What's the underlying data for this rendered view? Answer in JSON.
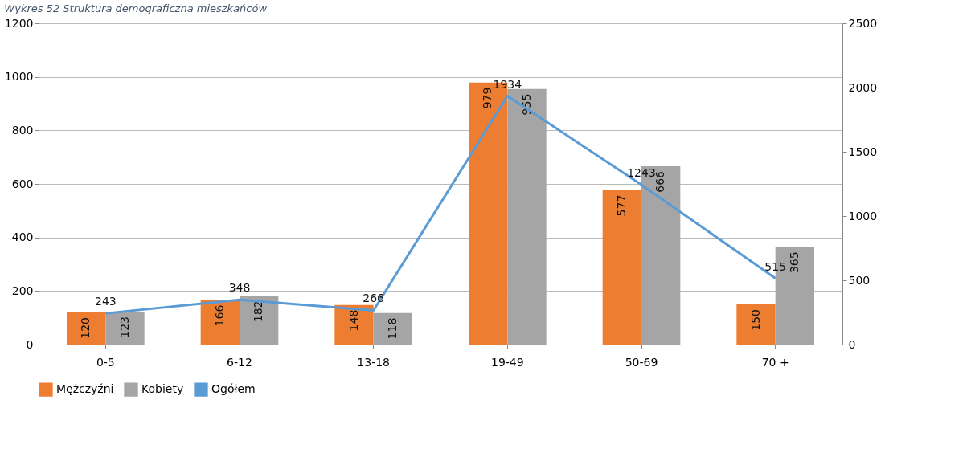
{
  "chart_data": {
    "type": "bar",
    "title": "Wykres 52 Struktura demograficzna mieszkańców",
    "categories": [
      "0-5",
      "6-12",
      "13-18",
      "19-49",
      "50-69",
      "70 +"
    ],
    "series": [
      {
        "name": "Mężczyźni",
        "color": "#ed7d31",
        "values": [
          120,
          166,
          148,
          979,
          577,
          150
        ]
      },
      {
        "name": "Kobiety",
        "color": "#a5a5a5",
        "values": [
          123,
          182,
          118,
          955,
          666,
          365
        ]
      },
      {
        "name": "Ogółem",
        "type": "line",
        "axis": "y2",
        "color": "#5b9bd5",
        "values": [
          243,
          348,
          266,
          1934,
          1243,
          515
        ]
      }
    ],
    "ylim": [
      0,
      1200
    ],
    "yticks": [
      0,
      200,
      400,
      600,
      800,
      1000,
      1200
    ],
    "y2lim": [
      0,
      2500
    ],
    "y2ticks": [
      0,
      500,
      1000,
      1500,
      2000,
      2500
    ],
    "grid": "y",
    "legend": "bottom",
    "data_labels": true,
    "marker": "none",
    "line_style": "solid"
  }
}
